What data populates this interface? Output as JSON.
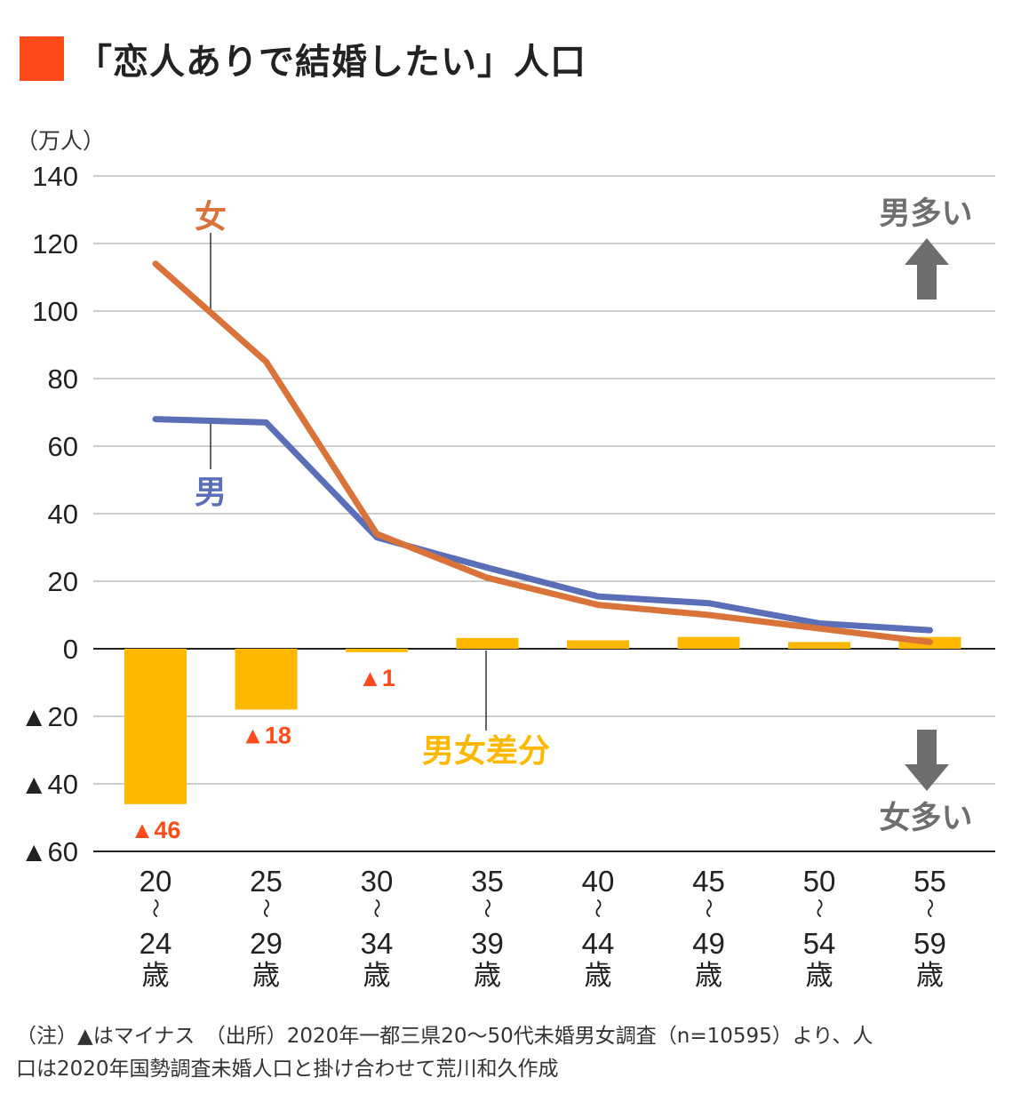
{
  "title": "「恋人ありで結婚したい」人口",
  "colors": {
    "title_square": "#ff4a1c",
    "female": "#d9733a",
    "male": "#5a6fb8",
    "diff": "#ffb800",
    "negative_label": "#ff4a1c",
    "arrow": "#6e6e6e",
    "grid": "#bdbdbd"
  },
  "chart_data": {
    "type": "bar+line",
    "unit_label": "（万人）",
    "ylim": [
      -60,
      140
    ],
    "y_ticks": [
      {
        "value": 140,
        "label": "140"
      },
      {
        "value": 120,
        "label": "120"
      },
      {
        "value": 100,
        "label": "100"
      },
      {
        "value": 80,
        "label": "80"
      },
      {
        "value": 60,
        "label": "60"
      },
      {
        "value": 40,
        "label": "40"
      },
      {
        "value": 20,
        "label": "20"
      },
      {
        "value": 0,
        "label": "0"
      },
      {
        "value": -20,
        "label": "▲20"
      },
      {
        "value": -40,
        "label": "▲40"
      },
      {
        "value": -60,
        "label": "▲60"
      }
    ],
    "categories": [
      {
        "start": "20",
        "tilde": "〜",
        "end": "24",
        "suffix": "歳"
      },
      {
        "start": "25",
        "tilde": "〜",
        "end": "29",
        "suffix": "歳"
      },
      {
        "start": "30",
        "tilde": "〜",
        "end": "34",
        "suffix": "歳"
      },
      {
        "start": "35",
        "tilde": "〜",
        "end": "39",
        "suffix": "歳"
      },
      {
        "start": "40",
        "tilde": "〜",
        "end": "44",
        "suffix": "歳"
      },
      {
        "start": "45",
        "tilde": "〜",
        "end": "49",
        "suffix": "歳"
      },
      {
        "start": "50",
        "tilde": "〜",
        "end": "54",
        "suffix": "歳"
      },
      {
        "start": "55",
        "tilde": "〜",
        "end": "59",
        "suffix": "歳"
      }
    ],
    "series": [
      {
        "name": "女",
        "type": "line",
        "values": [
          114,
          85,
          34,
          21,
          13,
          10,
          6,
          2
        ]
      },
      {
        "name": "男",
        "type": "line",
        "values": [
          68,
          67,
          33,
          24,
          15.5,
          13.5,
          7.5,
          5.5
        ]
      },
      {
        "name": "男女差分",
        "type": "bar",
        "values": [
          -46,
          -18,
          -1,
          3.2,
          2.5,
          3.5,
          2,
          3.5
        ]
      }
    ],
    "bar_labels": [
      "▲46",
      "▲18",
      "▲1",
      "",
      "",
      "",
      "",
      ""
    ],
    "annotations": {
      "up_label": "男多い",
      "down_label": "女多い"
    }
  },
  "footnote": {
    "line1": "（注）▲はマイナス　（出所）2020年一都三県20〜50代未婚男女調査（n=10595）より、人",
    "line2": "口は2020年国勢調査未婚人口と掛け合わせて荒川和久作成"
  }
}
